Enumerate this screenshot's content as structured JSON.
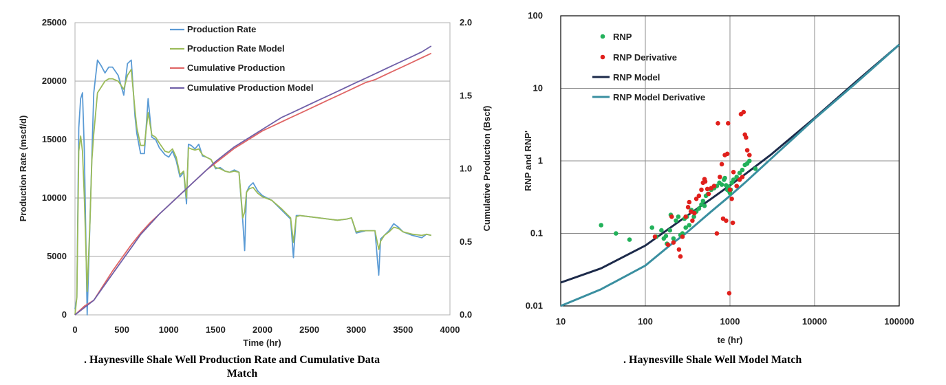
{
  "chart_data": [
    {
      "type": "line",
      "caption_line1": ". Haynesville Shale Well Production Rate and Cumulative Data",
      "caption_line2": "Match",
      "xlabel": "Time (hr)",
      "ylabel": "Production Rate (mscf/d)",
      "y2label": "Cumulative Production (Bscf)",
      "xlim": [
        0,
        4000
      ],
      "ylim": [
        0,
        25000
      ],
      "y2lim": [
        0,
        2.0
      ],
      "xticks": [
        "0",
        "500",
        "1000",
        "1500",
        "2000",
        "2500",
        "3000",
        "3500",
        "4000"
      ],
      "yticks": [
        "0",
        "5000",
        "10000",
        "15000",
        "20000",
        "25000"
      ],
      "y2ticks": [
        "0.0",
        "0.5",
        "1.0",
        "1.5",
        "2.0"
      ],
      "grid": "horizontal",
      "legend_position": "top-center",
      "series": [
        {
          "name": "Production Rate",
          "axis": "left",
          "color": "#5b9bd5",
          "x": [
            0,
            20,
            40,
            60,
            80,
            100,
            130,
            160,
            180,
            200,
            240,
            280,
            320,
            360,
            400,
            460,
            520,
            560,
            600,
            640,
            660,
            700,
            740,
            780,
            820,
            860,
            900,
            960,
            1000,
            1040,
            1080,
            1120,
            1160,
            1190,
            1210,
            1240,
            1280,
            1320,
            1360,
            1400,
            1450,
            1500,
            1550,
            1600,
            1650,
            1700,
            1750,
            1790,
            1810,
            1830,
            1860,
            1900,
            1950,
            2000,
            2100,
            2200,
            2300,
            2330,
            2360,
            2400,
            2500,
            2600,
            2700,
            2800,
            2900,
            2950,
            3000,
            3050,
            3100,
            3200,
            3240,
            3260,
            3300,
            3350,
            3400,
            3450,
            3500,
            3600,
            3700,
            3750,
            3800
          ],
          "y": [
            500,
            1500,
            16000,
            18500,
            19000,
            14000,
            0,
            8000,
            13500,
            19000,
            21800,
            21300,
            20700,
            21200,
            21200,
            20500,
            18800,
            21500,
            21800,
            17000,
            15500,
            13800,
            13800,
            18500,
            15200,
            15000,
            14300,
            13700,
            13500,
            14000,
            13200,
            11800,
            12200,
            9500,
            14600,
            14500,
            14200,
            14600,
            13600,
            13500,
            13300,
            12500,
            12600,
            12300,
            12200,
            12400,
            12200,
            8000,
            5500,
            10500,
            11000,
            11300,
            10600,
            10200,
            9800,
            9000,
            8200,
            4900,
            8500,
            8500,
            8400,
            8300,
            8200,
            8100,
            8200,
            8300,
            7000,
            7100,
            7200,
            7200,
            3400,
            6500,
            6800,
            7200,
            7800,
            7500,
            7100,
            6800,
            6600,
            6900,
            6800
          ]
        },
        {
          "name": "Production Rate Model",
          "axis": "left",
          "color": "#9bbb59",
          "x": [
            0,
            20,
            40,
            60,
            80,
            100,
            130,
            160,
            180,
            200,
            240,
            280,
            320,
            360,
            400,
            460,
            520,
            560,
            600,
            640,
            660,
            700,
            740,
            780,
            820,
            860,
            900,
            960,
            1000,
            1040,
            1080,
            1120,
            1160,
            1190,
            1210,
            1240,
            1280,
            1320,
            1360,
            1400,
            1450,
            1500,
            1550,
            1600,
            1650,
            1700,
            1750,
            1790,
            1810,
            1830,
            1860,
            1900,
            1950,
            2000,
            2100,
            2200,
            2300,
            2330,
            2360,
            2400,
            2500,
            2600,
            2700,
            2800,
            2900,
            2950,
            3000,
            3050,
            3100,
            3200,
            3240,
            3260,
            3300,
            3350,
            3400,
            3450,
            3500,
            3600,
            3700,
            3750,
            3800
          ],
          "y": [
            0,
            1500,
            14000,
            15300,
            14000,
            10000,
            2000,
            8000,
            13200,
            15500,
            19000,
            19500,
            20000,
            20200,
            20200,
            20000,
            19300,
            20500,
            21000,
            17500,
            16000,
            14500,
            14500,
            17300,
            15400,
            15200,
            14700,
            14000,
            13900,
            14200,
            13500,
            12000,
            12300,
            10000,
            14300,
            14200,
            14100,
            14200,
            13700,
            13500,
            13300,
            12600,
            12500,
            12300,
            12200,
            12300,
            12200,
            8300,
            8800,
            10500,
            10800,
            10900,
            10400,
            10100,
            9800,
            9100,
            8300,
            6200,
            8400,
            8500,
            8400,
            8300,
            8200,
            8100,
            8200,
            8300,
            7100,
            7200,
            7200,
            7200,
            5600,
            6300,
            6800,
            7100,
            7500,
            7400,
            7100,
            6900,
            6800,
            6900,
            6800
          ]
        },
        {
          "name": "Cumulative Production",
          "axis": "right",
          "color": "#e06666",
          "x": [
            0,
            100,
            200,
            300,
            400,
            500,
            600,
            700,
            800,
            900,
            1000,
            1100,
            1200,
            1300,
            1400,
            1500,
            1600,
            1700,
            1800,
            1900,
            2000,
            2100,
            2200,
            2300,
            2400,
            2500,
            2600,
            2700,
            2800,
            2900,
            3000,
            3100,
            3200,
            3300,
            3400,
            3500,
            3600,
            3700,
            3800
          ],
          "y": [
            0,
            0.06,
            0.1,
            0.2,
            0.3,
            0.39,
            0.48,
            0.56,
            0.63,
            0.69,
            0.75,
            0.81,
            0.87,
            0.93,
            0.99,
            1.04,
            1.09,
            1.14,
            1.18,
            1.22,
            1.26,
            1.29,
            1.32,
            1.35,
            1.38,
            1.41,
            1.44,
            1.47,
            1.5,
            1.53,
            1.56,
            1.59,
            1.61,
            1.64,
            1.67,
            1.7,
            1.73,
            1.76,
            1.79
          ]
        },
        {
          "name": "Cumulative Production Model",
          "axis": "right",
          "color": "#7060a8",
          "x": [
            0,
            100,
            200,
            300,
            400,
            500,
            600,
            700,
            800,
            900,
            1000,
            1100,
            1200,
            1300,
            1400,
            1500,
            1600,
            1700,
            1800,
            1900,
            2000,
            2100,
            2200,
            2300,
            2400,
            2500,
            2600,
            2700,
            2800,
            2900,
            3000,
            3100,
            3200,
            3300,
            3400,
            3500,
            3600,
            3700,
            3800
          ],
          "y": [
            0,
            0.05,
            0.1,
            0.19,
            0.28,
            0.37,
            0.46,
            0.55,
            0.62,
            0.69,
            0.75,
            0.81,
            0.87,
            0.93,
            0.99,
            1.05,
            1.1,
            1.15,
            1.19,
            1.23,
            1.27,
            1.31,
            1.35,
            1.38,
            1.41,
            1.44,
            1.47,
            1.5,
            1.53,
            1.56,
            1.59,
            1.62,
            1.65,
            1.68,
            1.71,
            1.74,
            1.77,
            1.8,
            1.84
          ]
        }
      ]
    },
    {
      "type": "scatter",
      "caption": ". Haynesville Shale Well Model Match",
      "xlabel": "te (hr)",
      "ylabel": "RNP and RNP'",
      "xscale": "log",
      "yscale": "log",
      "xlim": [
        10,
        100000
      ],
      "ylim": [
        0.01,
        100
      ],
      "xticks": [
        "10",
        "100",
        "1000",
        "10000",
        "100000"
      ],
      "yticks": [
        "0.01",
        "0.1",
        "1",
        "10",
        "100"
      ],
      "grid": "both",
      "legend_position": "top-left",
      "series": [
        {
          "name": "RNP",
          "kind": "points",
          "color": "#22b15a",
          "x": [
            30,
            45,
            65,
            120,
            135,
            155,
            165,
            175,
            180,
            195,
            200,
            215,
            230,
            245,
            260,
            275,
            290,
            300,
            310,
            330,
            350,
            375,
            400,
            430,
            460,
            480,
            500,
            520,
            550,
            600,
            650,
            700,
            750,
            800,
            850,
            870,
            900,
            930,
            950,
            960,
            980,
            1000,
            1020,
            1050,
            1100,
            1200,
            1300,
            1400,
            1500,
            1600,
            1700,
            2000
          ],
          "y": [
            0.13,
            0.1,
            0.082,
            0.12,
            0.09,
            0.11,
            0.085,
            0.092,
            0.072,
            0.11,
            0.18,
            0.085,
            0.15,
            0.17,
            0.095,
            0.1,
            0.16,
            0.12,
            0.17,
            0.13,
            0.21,
            0.17,
            0.2,
            0.22,
            0.25,
            0.28,
            0.24,
            0.33,
            0.35,
            0.4,
            0.42,
            0.45,
            0.5,
            0.47,
            0.55,
            0.58,
            0.46,
            0.4,
            0.42,
            0.44,
            0.38,
            0.36,
            0.4,
            0.5,
            0.55,
            0.6,
            0.68,
            0.75,
            0.88,
            0.92,
            1.0,
            0.78
          ]
        },
        {
          "name": "RNP Derivative",
          "kind": "points",
          "color": "#e0201c",
          "x": [
            130,
            185,
            205,
            215,
            250,
            260,
            275,
            300,
            320,
            330,
            345,
            360,
            380,
            400,
            430,
            460,
            480,
            500,
            510,
            540,
            560,
            600,
            650,
            700,
            720,
            760,
            800,
            830,
            870,
            900,
            930,
            950,
            980,
            1000,
            1050,
            1080,
            1100,
            1200,
            1300,
            1350,
            1400,
            1450,
            1500,
            1550,
            1600,
            1700
          ],
          "y": [
            0.09,
            0.07,
            0.17,
            0.075,
            0.06,
            0.048,
            0.09,
            0.17,
            0.23,
            0.27,
            0.2,
            0.15,
            0.19,
            0.3,
            0.33,
            0.4,
            0.5,
            0.56,
            0.52,
            0.41,
            0.35,
            0.42,
            0.45,
            0.1,
            3.3,
            0.6,
            0.9,
            0.16,
            1.2,
            0.15,
            1.25,
            3.3,
            0.015,
            0.4,
            0.3,
            0.14,
            0.7,
            0.45,
            0.55,
            4.4,
            0.6,
            4.7,
            2.3,
            2.1,
            1.4,
            1.2
          ]
        },
        {
          "name": "RNP Model",
          "kind": "line",
          "color": "#1c2a4a",
          "x": [
            10,
            30,
            100,
            300,
            600,
            1000,
            1500,
            3000,
            10000,
            30000,
            100000
          ],
          "y": [
            0.021,
            0.033,
            0.068,
            0.17,
            0.3,
            0.46,
            0.65,
            1.2,
            3.9,
            12,
            40
          ]
        },
        {
          "name": "RNP Model Derivative",
          "kind": "line",
          "color": "#3a8fa0",
          "x": [
            10,
            30,
            100,
            200,
            300,
            600,
            1000,
            1500,
            3000,
            10000,
            30000,
            100000
          ],
          "y": [
            0.01,
            0.017,
            0.036,
            0.07,
            0.1,
            0.2,
            0.33,
            0.5,
            1.05,
            3.8,
            11.5,
            40
          ]
        }
      ]
    }
  ]
}
